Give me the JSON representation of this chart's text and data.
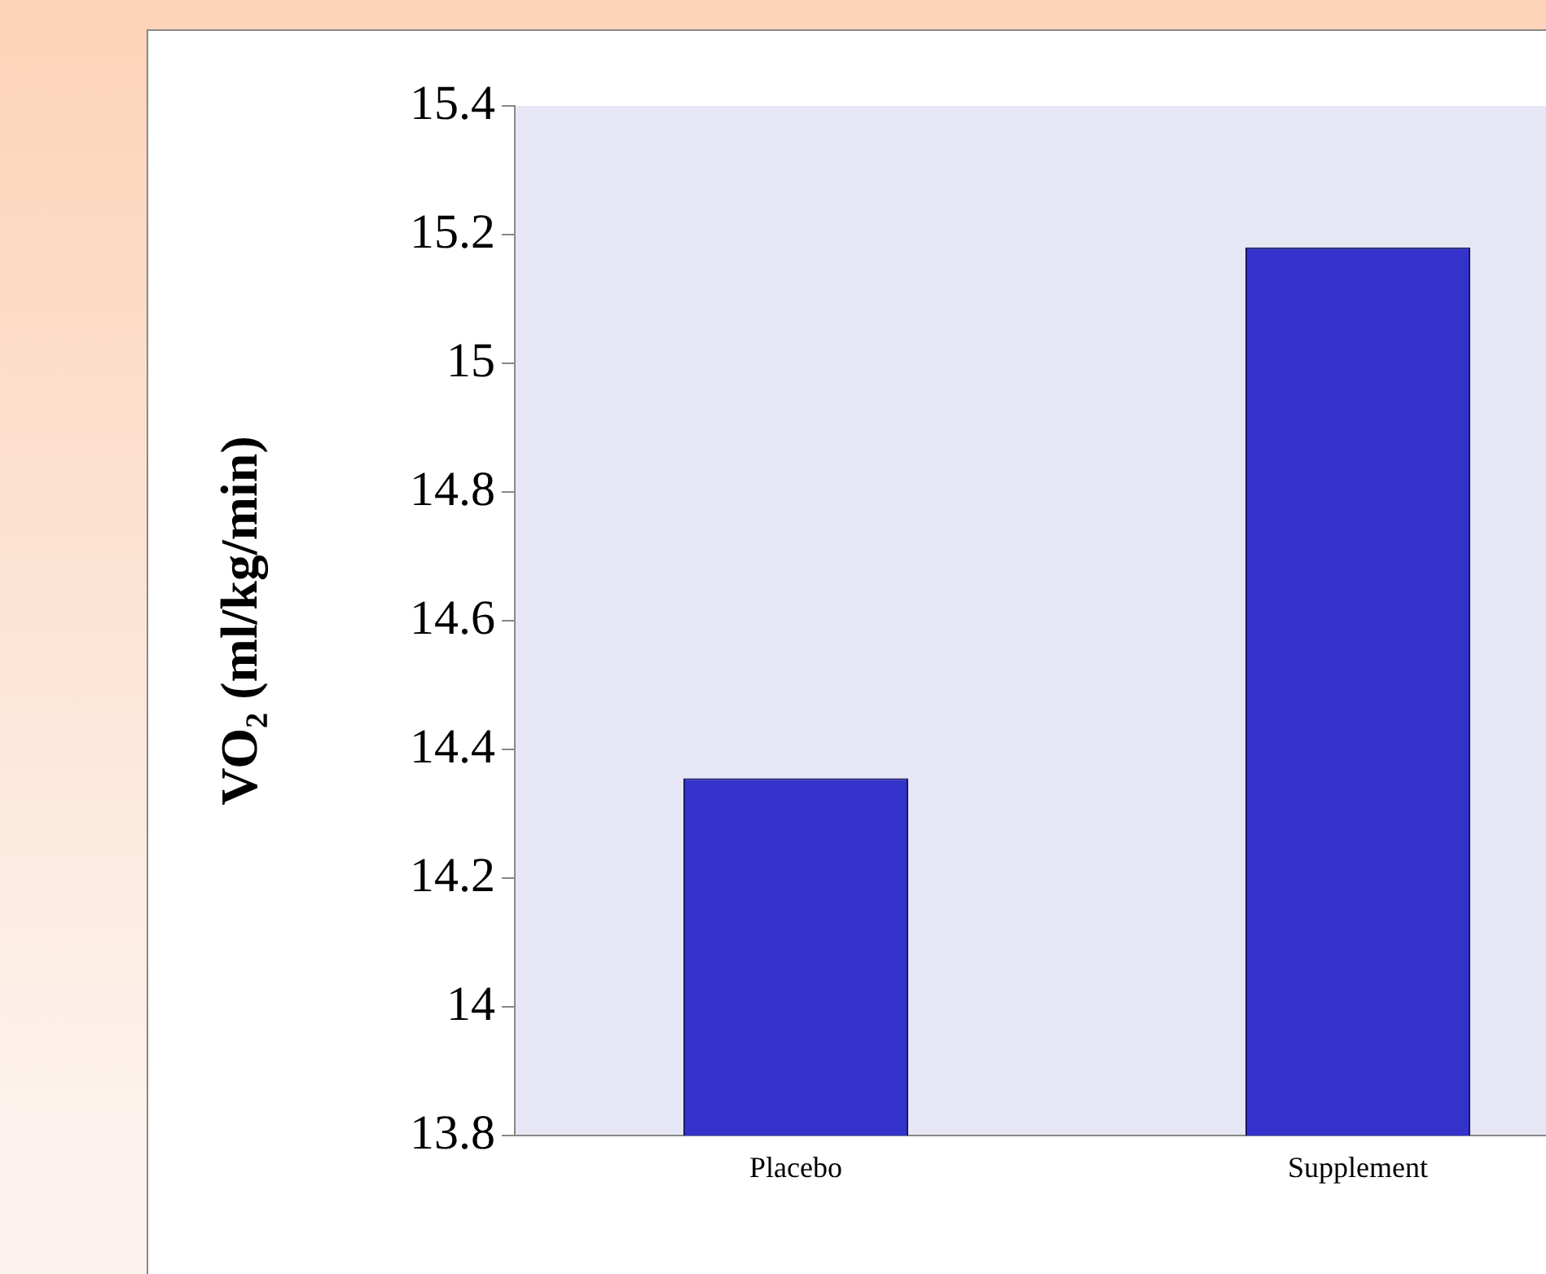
{
  "chart_data": {
    "type": "bar",
    "ylabel": "VO₂ (ml/kg/min)",
    "categories": [
      "Placebo",
      "Supplement"
    ],
    "values": [
      14.355,
      15.18
    ],
    "color": "#3333cc",
    "ylim": [
      13.8,
      15.4
    ],
    "yticks": [
      13.8,
      14,
      14.2,
      14.4,
      14.6,
      14.8,
      15,
      15.2,
      15.4
    ],
    "grid": false,
    "legend": false
  }
}
